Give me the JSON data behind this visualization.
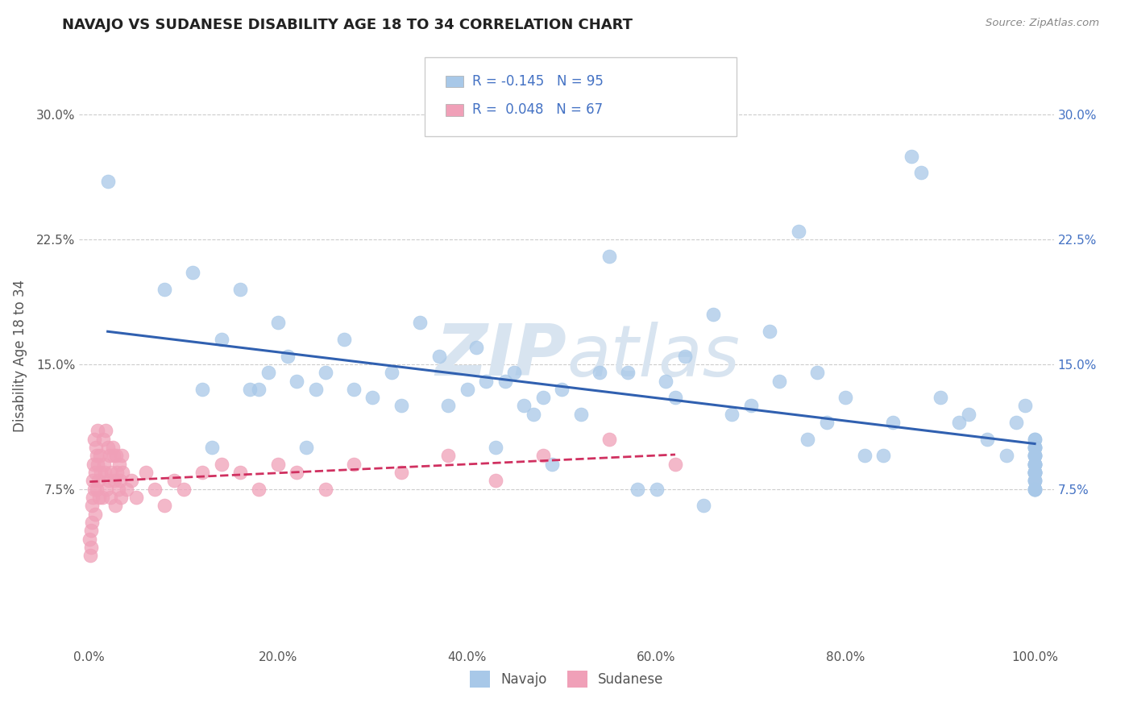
{
  "title": "NAVAJO VS SUDANESE DISABILITY AGE 18 TO 34 CORRELATION CHART",
  "source": "Source: ZipAtlas.com",
  "ylabel": "Disability Age 18 to 34",
  "navajo_R": -0.145,
  "navajo_N": 95,
  "sudanese_R": 0.048,
  "sudanese_N": 67,
  "navajo_color": "#a8c8e8",
  "sudanese_color": "#f0a0b8",
  "navajo_line_color": "#3060b0",
  "sudanese_line_color": "#d03060",
  "sudanese_line_style": "--",
  "navajo_x": [
    2.0,
    8.0,
    11.0,
    12.0,
    13.0,
    14.0,
    16.0,
    17.0,
    18.0,
    19.0,
    20.0,
    21.0,
    22.0,
    23.0,
    24.0,
    25.0,
    27.0,
    28.0,
    30.0,
    32.0,
    33.0,
    35.0,
    37.0,
    38.0,
    40.0,
    41.0,
    42.0,
    43.0,
    44.0,
    45.0,
    46.0,
    47.0,
    48.0,
    49.0,
    50.0,
    52.0,
    54.0,
    55.0,
    57.0,
    58.0,
    60.0,
    61.0,
    62.0,
    63.0,
    65.0,
    66.0,
    68.0,
    70.0,
    72.0,
    73.0,
    75.0,
    76.0,
    77.0,
    78.0,
    80.0,
    82.0,
    84.0,
    85.0,
    87.0,
    88.0,
    90.0,
    92.0,
    93.0,
    95.0,
    97.0,
    98.0,
    99.0,
    100.0,
    100.0,
    100.0,
    100.0,
    100.0,
    100.0,
    100.0,
    100.0,
    100.0,
    100.0,
    100.0,
    100.0,
    100.0,
    100.0,
    100.0,
    100.0,
    100.0,
    100.0,
    100.0,
    100.0,
    100.0,
    100.0,
    100.0,
    100.0,
    100.0,
    100.0,
    100.0,
    100.0
  ],
  "navajo_y": [
    26.0,
    19.5,
    20.5,
    13.5,
    10.0,
    16.5,
    19.5,
    13.5,
    13.5,
    14.5,
    17.5,
    15.5,
    14.0,
    10.0,
    13.5,
    14.5,
    16.5,
    13.5,
    13.0,
    14.5,
    12.5,
    17.5,
    15.5,
    12.5,
    13.5,
    16.0,
    14.0,
    10.0,
    14.0,
    14.5,
    12.5,
    12.0,
    13.0,
    9.0,
    13.5,
    12.0,
    14.5,
    21.5,
    14.5,
    7.5,
    7.5,
    14.0,
    13.0,
    15.5,
    6.5,
    18.0,
    12.0,
    12.5,
    17.0,
    14.0,
    23.0,
    10.5,
    14.5,
    11.5,
    13.0,
    9.5,
    9.5,
    11.5,
    27.5,
    26.5,
    13.0,
    11.5,
    12.0,
    10.5,
    9.5,
    11.5,
    12.5,
    10.5,
    8.5,
    9.5,
    8.0,
    9.0,
    10.0,
    8.5,
    7.5,
    9.0,
    10.5,
    9.5,
    8.5,
    8.0,
    7.5,
    9.0,
    8.5,
    10.0,
    9.0,
    8.5,
    7.5,
    9.5,
    8.5,
    10.0,
    9.5,
    8.0,
    7.5,
    10.0,
    9.0
  ],
  "sudanese_x": [
    0.1,
    0.15,
    0.2,
    0.25,
    0.3,
    0.35,
    0.4,
    0.45,
    0.5,
    0.55,
    0.6,
    0.65,
    0.7,
    0.75,
    0.8,
    0.85,
    0.9,
    0.95,
    1.0,
    1.1,
    1.2,
    1.3,
    1.4,
    1.5,
    1.6,
    1.7,
    1.8,
    1.9,
    2.0,
    2.1,
    2.2,
    2.3,
    2.4,
    2.5,
    2.6,
    2.7,
    2.8,
    2.9,
    3.0,
    3.1,
    3.2,
    3.3,
    3.4,
    3.5,
    3.6,
    4.0,
    4.5,
    5.0,
    6.0,
    7.0,
    8.0,
    9.0,
    10.0,
    12.0,
    14.0,
    16.0,
    18.0,
    20.0,
    22.0,
    25.0,
    28.0,
    33.0,
    38.0,
    43.0,
    48.0,
    55.0,
    62.0
  ],
  "sudanese_y": [
    4.5,
    3.5,
    5.0,
    4.0,
    6.5,
    5.5,
    7.0,
    8.0,
    9.0,
    7.5,
    10.5,
    8.5,
    6.0,
    10.0,
    9.5,
    7.5,
    11.0,
    9.0,
    8.0,
    7.0,
    9.5,
    8.5,
    7.0,
    10.5,
    9.0,
    8.5,
    11.0,
    7.5,
    10.0,
    8.0,
    9.5,
    7.0,
    8.5,
    10.0,
    9.5,
    8.0,
    6.5,
    9.5,
    8.5,
    7.5,
    9.0,
    8.0,
    7.0,
    9.5,
    8.5,
    7.5,
    8.0,
    7.0,
    8.5,
    7.5,
    6.5,
    8.0,
    7.5,
    8.5,
    9.0,
    8.5,
    7.5,
    9.0,
    8.5,
    7.5,
    9.0,
    8.5,
    9.5,
    8.0,
    9.5,
    10.5,
    9.0
  ],
  "xtick_labels": [
    "0.0%",
    "20.0%",
    "40.0%",
    "60.0%",
    "80.0%",
    "100.0%"
  ],
  "xtick_values": [
    0,
    20,
    40,
    60,
    80,
    100
  ],
  "ytick_labels_left": [
    "7.5%",
    "15.0%",
    "22.5%",
    "30.0%"
  ],
  "ytick_labels_right": [
    "7.5%",
    "15.0%",
    "22.5%",
    "30.0%"
  ],
  "ytick_values": [
    7.5,
    15.0,
    22.5,
    30.0
  ],
  "ylim": [
    -2,
    33
  ],
  "xlim": [
    -1,
    102
  ],
  "bg_color": "#ffffff",
  "grid_color": "#cccccc",
  "title_color": "#222222",
  "label_color": "#555555",
  "right_axis_color": "#4472c4",
  "source_color": "#888888",
  "watermark_color": "#d8e4f0",
  "legend_text_color": "#4472c4"
}
